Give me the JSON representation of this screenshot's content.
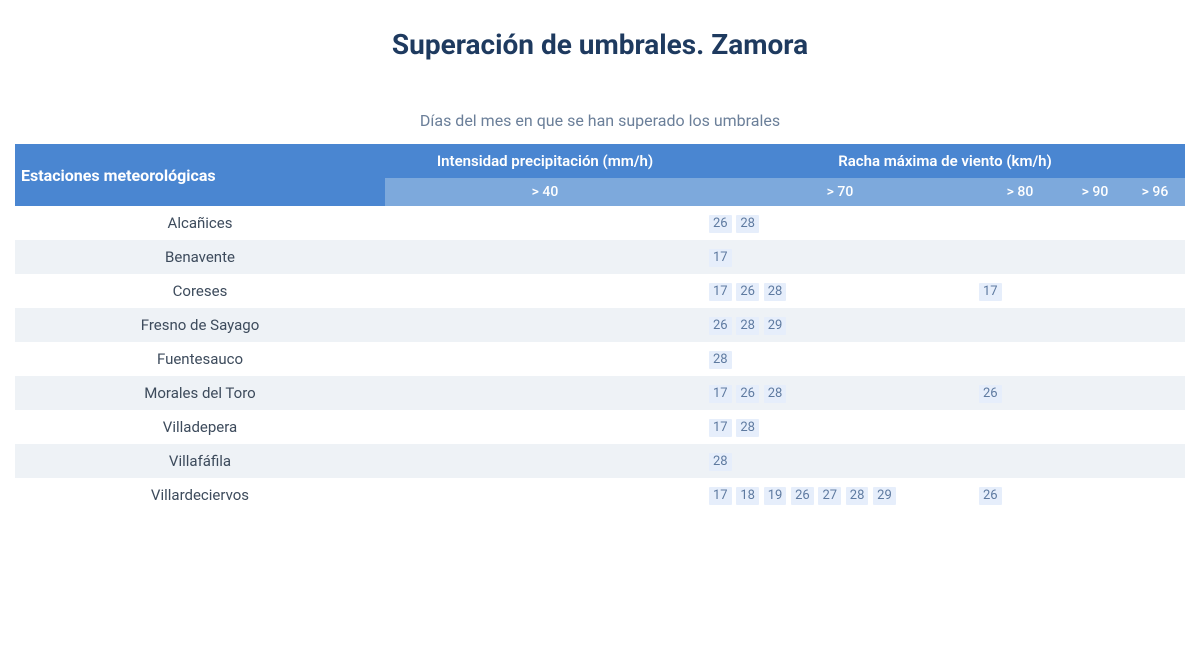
{
  "title": "Superación de umbrales. Zamora",
  "subtitle": "Días del mes en que se han superado los umbrales",
  "colors": {
    "header_bg": "#4a86d1",
    "subheader_bg": "#7da9dc",
    "header_text": "#ffffff",
    "title_text": "#1e3a5f",
    "subtitle_text": "#6b7f99",
    "row_even_bg": "#eef2f6",
    "row_odd_bg": "#ffffff",
    "cell_text": "#4a5a6e",
    "badge_bg": "#e6eefb",
    "badge_text": "#5e7aa0"
  },
  "headers": {
    "stations": "Estaciones meteorológicas",
    "group_precip": "Intensidad precipitación (mm/h)",
    "group_wind": "Racha máxima de viento (km/h)",
    "precip_gt40": "> 40",
    "wind_gt70": "> 70",
    "wind_gt80": "> 80",
    "wind_gt90": "> 90",
    "wind_gt96": "> 96"
  },
  "rows": [
    {
      "station": "Alcañices",
      "precip40": [],
      "w70": [
        26,
        28
      ],
      "w80": [],
      "w90": [],
      "w96": []
    },
    {
      "station": "Benavente",
      "precip40": [],
      "w70": [
        17
      ],
      "w80": [],
      "w90": [],
      "w96": []
    },
    {
      "station": "Coreses",
      "precip40": [],
      "w70": [
        17,
        26,
        28
      ],
      "w80": [
        17
      ],
      "w90": [],
      "w96": []
    },
    {
      "station": "Fresno de Sayago",
      "precip40": [],
      "w70": [
        26,
        28,
        29
      ],
      "w80": [],
      "w90": [],
      "w96": []
    },
    {
      "station": "Fuentesauco",
      "precip40": [],
      "w70": [
        28
      ],
      "w80": [],
      "w90": [],
      "w96": []
    },
    {
      "station": "Morales del Toro",
      "precip40": [],
      "w70": [
        17,
        26,
        28
      ],
      "w80": [
        26
      ],
      "w90": [],
      "w96": []
    },
    {
      "station": "Villadepera",
      "precip40": [],
      "w70": [
        17,
        28
      ],
      "w80": [],
      "w90": [],
      "w96": []
    },
    {
      "station": "Villafáfila",
      "precip40": [],
      "w70": [
        28
      ],
      "w80": [],
      "w90": [],
      "w96": []
    },
    {
      "station": "Villardeciervos",
      "precip40": [],
      "w70": [
        17,
        18,
        19,
        26,
        27,
        28,
        29
      ],
      "w80": [
        26
      ],
      "w90": [],
      "w96": []
    }
  ]
}
